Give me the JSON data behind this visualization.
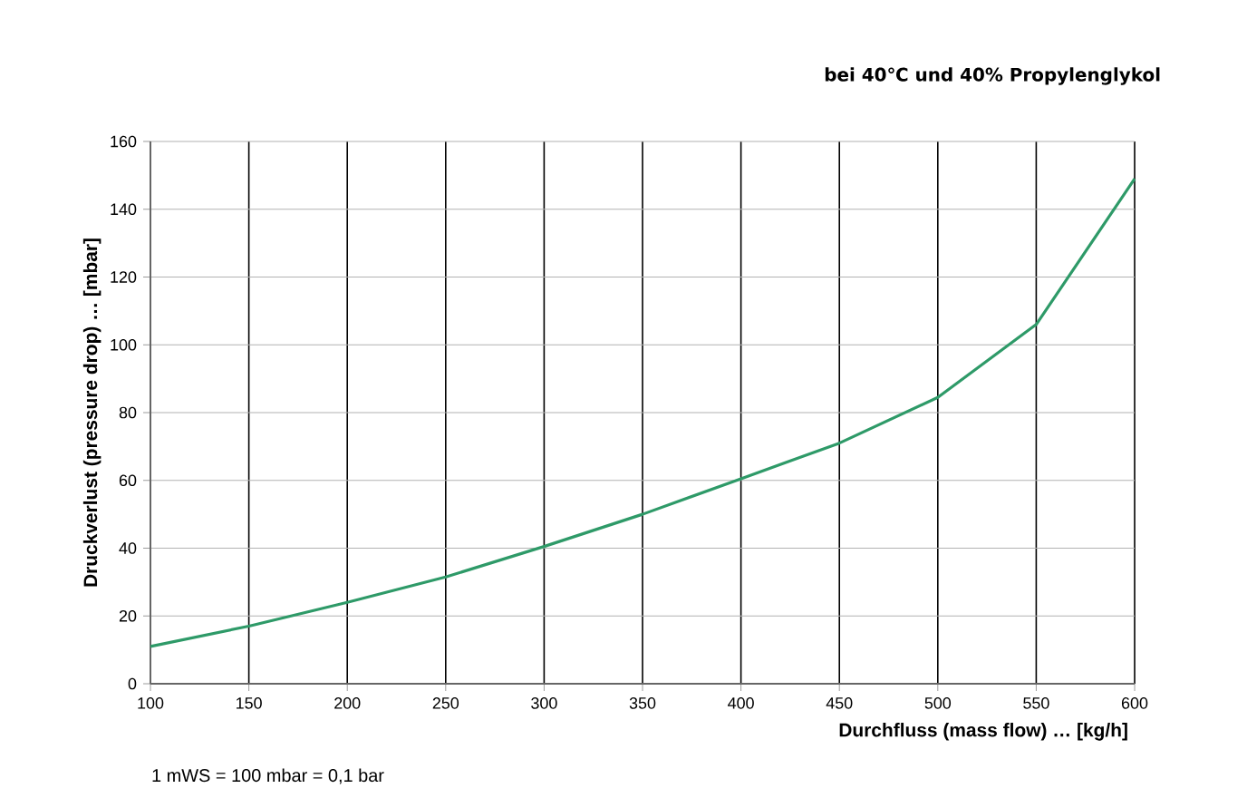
{
  "chart_data": {
    "type": "line",
    "title": "bei 40℃ und 40% Propylenglykol",
    "xlabel": "Durchfluss (mass flow) … [kg/h]",
    "ylabel": "Druckverlust (pressure drop) … [mbar]",
    "annotations": [
      "1 mWS = 100 mbar = 0,1 bar"
    ],
    "x": [
      100,
      150,
      200,
      250,
      300,
      350,
      400,
      450,
      500,
      550,
      600
    ],
    "series": [
      {
        "color": "#2e9a68",
        "values": [
          11,
          17,
          24,
          31.5,
          40.5,
          50,
          60.5,
          71,
          84.5,
          106,
          149
        ]
      }
    ],
    "xlim": [
      100,
      600
    ],
    "xticks": [
      100,
      150,
      200,
      250,
      300,
      350,
      400,
      450,
      500,
      550,
      600
    ],
    "ylim": [
      0,
      160
    ],
    "yticks": [
      0,
      20,
      40,
      60,
      80,
      100,
      120,
      140,
      160
    ],
    "grid": true,
    "marker": "none",
    "line_style": "solid"
  }
}
